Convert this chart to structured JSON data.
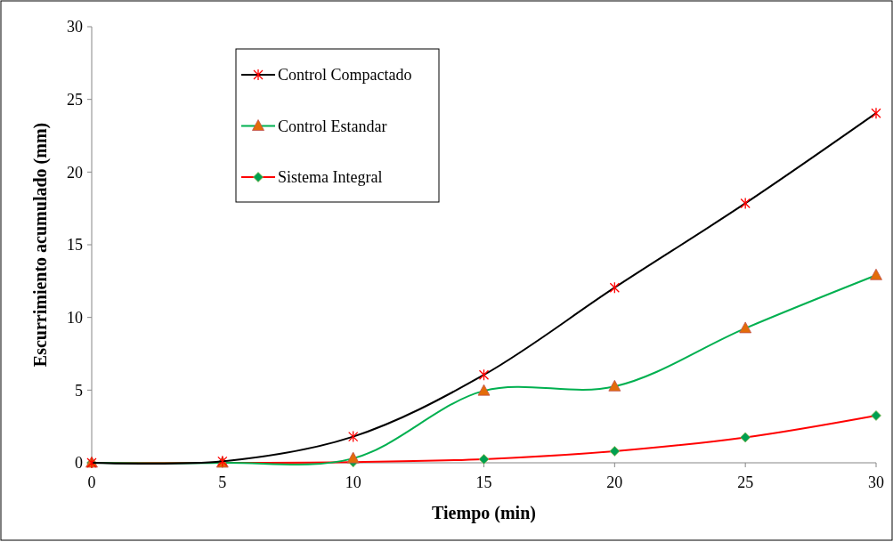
{
  "chart_data": {
    "type": "line",
    "xlabel": "Tiempo (min)",
    "ylabel": "Escurrimiento acumulado (mm)",
    "x": [
      0,
      5,
      10,
      15,
      20,
      25,
      30
    ],
    "xlim": [
      0,
      30
    ],
    "xticks": [
      0,
      5,
      10,
      15,
      20,
      25,
      30
    ],
    "ylim": [
      0,
      30
    ],
    "yticks": [
      0,
      5,
      10,
      15,
      20,
      25,
      30
    ],
    "grid": false,
    "legend": "top left",
    "series": [
      {
        "name": "Control Compactado",
        "color": "#000000",
        "colors": [
          "#ff0000",
          "#ff0000",
          "#ff0000",
          "#ff0000",
          "#ff0000",
          "#ff0000",
          "#ff0000"
        ],
        "marker": "cross",
        "values": [
          0,
          0.1,
          1.8,
          6.05,
          12.05,
          17.85,
          24.05
        ]
      },
      {
        "name": "Control Estandar",
        "color": "#00b050",
        "colors": [
          "#e36c09",
          "#e36c09",
          "#e36c09",
          "#e36c09",
          "#e36c09",
          "#e36c09",
          "#e36c09"
        ],
        "marker": "triangle",
        "values": [
          0,
          0,
          0.3,
          4.95,
          5.25,
          9.25,
          12.9
        ]
      },
      {
        "name": "Sistema Integral",
        "color": "#ff0000",
        "colors": [
          "#00a050",
          "#00a050",
          "#00a050",
          "#00a050",
          "#00a050",
          "#00a050",
          "#00a050"
        ],
        "marker": "diamond",
        "values": [
          0,
          0,
          0.05,
          0.25,
          0.8,
          1.75,
          3.25
        ]
      }
    ]
  }
}
